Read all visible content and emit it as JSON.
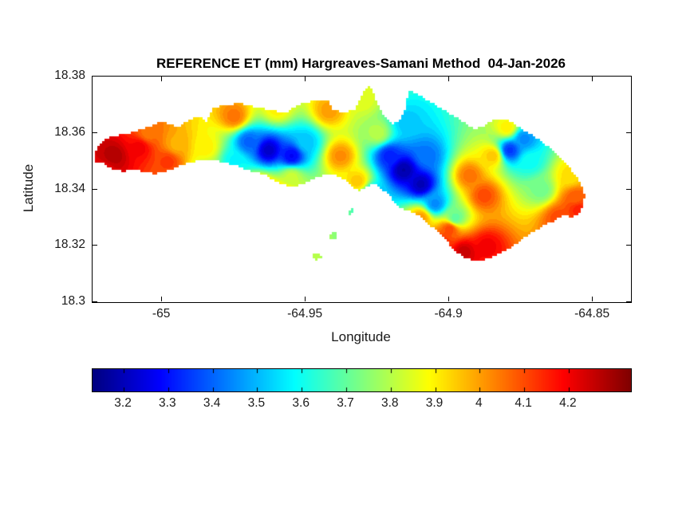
{
  "figure": {
    "title": "REFERENCE ET (mm) Hargreaves-Samani Method  04-Jan-2026"
  },
  "chart_data": {
    "type": "heatmap",
    "subtype": "filled-contour-map",
    "title": "REFERENCE ET (mm) Hargreaves-Samani Method  04-Jan-2026",
    "xlabel": "Longitude",
    "ylabel": "Latitude",
    "x_ticks": [
      -65,
      -64.95,
      -64.9,
      -64.85
    ],
    "x_tick_labels": [
      "-65",
      "-64.95",
      "-64.9",
      "-64.85"
    ],
    "y_ticks": [
      18.3,
      18.32,
      18.34,
      18.36,
      18.38
    ],
    "y_tick_labels": [
      "18.3",
      "18.32",
      "18.34",
      "18.36",
      "18.38"
    ],
    "xlim": [
      -65.0242,
      -64.8367
    ],
    "ylim": [
      18.3,
      18.38
    ],
    "colormap": "jet",
    "clim": [
      3.13,
      4.34
    ],
    "contour_interval": 0.025,
    "units": "mm",
    "colorbar": {
      "orientation": "horizontal",
      "ticks": [
        3.2,
        3.3,
        3.4,
        3.5,
        3.6,
        3.7,
        3.8,
        3.9,
        4,
        4.1,
        4.2
      ],
      "tick_labels": [
        "3.2",
        "3.3",
        "3.4",
        "3.5",
        "3.6",
        "3.7",
        "3.8",
        "3.9",
        "4",
        "4.1",
        "4.2"
      ]
    },
    "island_outline": [
      [
        -65.0235,
        18.35
      ],
      [
        -65.0228,
        18.3552
      ],
      [
        -65.0185,
        18.3585
      ],
      [
        -65.012,
        18.3598
      ],
      [
        -65.0055,
        18.3618
      ],
      [
        -65.0,
        18.364
      ],
      [
        -64.9945,
        18.362
      ],
      [
        -64.9905,
        18.3648
      ],
      [
        -64.9872,
        18.3658
      ],
      [
        -64.9845,
        18.3642
      ],
      [
        -64.9825,
        18.3685
      ],
      [
        -64.9785,
        18.3698
      ],
      [
        -64.973,
        18.3705
      ],
      [
        -64.9672,
        18.3692
      ],
      [
        -64.9618,
        18.368
      ],
      [
        -64.9568,
        18.3673
      ],
      [
        -64.9515,
        18.3706
      ],
      [
        -64.946,
        18.3716
      ],
      [
        -64.9424,
        18.372
      ],
      [
        -64.9406,
        18.3682
      ],
      [
        -64.9368,
        18.3673
      ],
      [
        -64.9328,
        18.3681
      ],
      [
        -64.9307,
        18.373
      ],
      [
        -64.929,
        18.3759
      ],
      [
        -64.9273,
        18.3764
      ],
      [
        -64.9264,
        18.374
      ],
      [
        -64.9246,
        18.37
      ],
      [
        -64.9227,
        18.366
      ],
      [
        -64.92,
        18.3632
      ],
      [
        -64.9174,
        18.3645
      ],
      [
        -64.9157,
        18.3672
      ],
      [
        -64.9147,
        18.3722
      ],
      [
        -64.9136,
        18.3753
      ],
      [
        -64.9118,
        18.3742
      ],
      [
        -64.9084,
        18.3722
      ],
      [
        -64.9049,
        18.37
      ],
      [
        -64.9012,
        18.3677
      ],
      [
        -64.8977,
        18.3657
      ],
      [
        -64.8942,
        18.3634
      ],
      [
        -64.891,
        18.3612
      ],
      [
        -64.8877,
        18.3627
      ],
      [
        -64.8843,
        18.3646
      ],
      [
        -64.8807,
        18.3652
      ],
      [
        -64.8781,
        18.3638
      ],
      [
        -64.8754,
        18.3618
      ],
      [
        -64.8721,
        18.3598
      ],
      [
        -64.8689,
        18.3578
      ],
      [
        -64.8654,
        18.355
      ],
      [
        -64.8619,
        18.3518
      ],
      [
        -64.8587,
        18.3484
      ],
      [
        -64.856,
        18.345
      ],
      [
        -64.8539,
        18.3415
      ],
      [
        -64.8528,
        18.3378
      ],
      [
        -64.8533,
        18.3341
      ],
      [
        -64.8549,
        18.3312
      ],
      [
        -64.8574,
        18.3301
      ],
      [
        -64.86,
        18.3312
      ],
      [
        -64.8627,
        18.3292
      ],
      [
        -64.8668,
        18.3272
      ],
      [
        -64.8708,
        18.325
      ],
      [
        -64.8748,
        18.3221
      ],
      [
        -64.8789,
        18.3192
      ],
      [
        -64.8829,
        18.317
      ],
      [
        -64.8869,
        18.3152
      ],
      [
        -64.891,
        18.3147
      ],
      [
        -64.895,
        18.3158
      ],
      [
        -64.8985,
        18.3187
      ],
      [
        -64.9012,
        18.3221
      ],
      [
        -64.9039,
        18.325
      ],
      [
        -64.9066,
        18.3272
      ],
      [
        -64.9098,
        18.3301
      ],
      [
        -64.913,
        18.3321
      ],
      [
        -64.9165,
        18.3331
      ],
      [
        -64.9192,
        18.3358
      ],
      [
        -64.9211,
        18.3381
      ],
      [
        -64.9232,
        18.3398
      ],
      [
        -64.9259,
        18.3421
      ],
      [
        -64.9286,
        18.3411
      ],
      [
        -64.9313,
        18.3392
      ],
      [
        -64.9335,
        18.3407
      ],
      [
        -64.9353,
        18.3427
      ],
      [
        -64.938,
        18.3444
      ],
      [
        -64.9407,
        18.3455
      ],
      [
        -64.9442,
        18.345
      ],
      [
        -64.9474,
        18.3435
      ],
      [
        -64.9507,
        18.3421
      ],
      [
        -64.9542,
        18.341
      ],
      [
        -64.9576,
        18.3415
      ],
      [
        -64.9609,
        18.3432
      ],
      [
        -64.9641,
        18.345
      ],
      [
        -64.9676,
        18.3461
      ],
      [
        -64.9711,
        18.3472
      ],
      [
        -64.9743,
        18.3484
      ],
      [
        -64.9776,
        18.3492
      ],
      [
        -64.9811,
        18.3501
      ],
      [
        -64.9846,
        18.3507
      ],
      [
        -64.9878,
        18.3501
      ],
      [
        -64.991,
        18.3492
      ],
      [
        -64.9937,
        18.3484
      ],
      [
        -64.9964,
        18.3472
      ],
      [
        -64.9991,
        18.3461
      ],
      [
        -65.0026,
        18.3455
      ],
      [
        -65.0061,
        18.3461
      ],
      [
        -65.0093,
        18.3472
      ],
      [
        -65.0134,
        18.3464
      ],
      [
        -65.0174,
        18.3472
      ],
      [
        -65.0206,
        18.3492
      ]
    ],
    "islets": [
      [
        [
          -64.9478,
          18.3168
        ],
        [
          -64.9452,
          18.3175
        ],
        [
          -64.9442,
          18.3155
        ],
        [
          -64.9468,
          18.3148
        ]
      ],
      [
        [
          -64.942,
          18.3242
        ],
        [
          -64.9396,
          18.3248
        ],
        [
          -64.9388,
          18.3228
        ],
        [
          -64.9412,
          18.3222
        ]
      ],
      [
        [
          -64.9355,
          18.3326
        ],
        [
          -64.9335,
          18.3331
        ],
        [
          -64.9328,
          18.3315
        ],
        [
          -64.9349,
          18.331
        ]
      ]
    ],
    "et_samples": [
      [
        -65.017,
        18.352,
        4.28
      ],
      [
        -65.02,
        18.347,
        4.22
      ],
      [
        -65.008,
        18.355,
        4.2
      ],
      [
        -65.005,
        18.36,
        4.05
      ],
      [
        -64.998,
        18.35,
        4.12
      ],
      [
        -64.995,
        18.356,
        3.98
      ],
      [
        -64.985,
        18.355,
        3.9
      ],
      [
        -64.975,
        18.366,
        4.05
      ],
      [
        -64.96,
        18.369,
        3.9
      ],
      [
        -64.93,
        18.372,
        3.85
      ],
      [
        -64.963,
        18.354,
        3.22
      ],
      [
        -64.955,
        18.352,
        3.28
      ],
      [
        -64.97,
        18.357,
        3.4
      ],
      [
        -64.975,
        18.35,
        3.58
      ],
      [
        -64.95,
        18.357,
        3.52
      ],
      [
        -64.985,
        18.346,
        3.78
      ],
      [
        -64.955,
        18.3445,
        3.82
      ],
      [
        -64.966,
        18.34,
        4.1
      ],
      [
        -64.958,
        18.3375,
        4.05
      ],
      [
        -64.942,
        18.368,
        4.0
      ],
      [
        -64.938,
        18.352,
        4.02
      ],
      [
        -64.932,
        18.343,
        3.95
      ],
      [
        -64.925,
        18.36,
        3.8
      ],
      [
        -64.915,
        18.364,
        3.52
      ],
      [
        -64.916,
        18.347,
        3.18
      ],
      [
        -64.91,
        18.342,
        3.2
      ],
      [
        -64.921,
        18.352,
        3.32
      ],
      [
        -64.927,
        18.338,
        3.5
      ],
      [
        -64.905,
        18.335,
        3.45
      ],
      [
        -64.908,
        18.352,
        3.42
      ],
      [
        -64.898,
        18.33,
        3.7
      ],
      [
        -64.893,
        18.345,
        4.05
      ],
      [
        -64.888,
        18.338,
        4.1
      ],
      [
        -64.885,
        18.352,
        3.95
      ],
      [
        -64.9,
        18.326,
        4.1
      ],
      [
        -64.895,
        18.318,
        4.25
      ],
      [
        -64.887,
        18.32,
        4.2
      ],
      [
        -64.903,
        18.321,
        4.15
      ],
      [
        -64.91,
        18.33,
        4.0
      ],
      [
        -64.879,
        18.354,
        3.35
      ],
      [
        -64.874,
        18.358,
        3.45
      ],
      [
        -64.872,
        18.35,
        3.6
      ],
      [
        -64.868,
        18.34,
        3.72
      ],
      [
        -64.862,
        18.33,
        4.1
      ],
      [
        -64.856,
        18.337,
        4.08
      ],
      [
        -64.858,
        18.345,
        3.92
      ],
      [
        -64.855,
        18.333,
        4.15
      ],
      [
        -64.88,
        18.362,
        3.9
      ]
    ]
  }
}
